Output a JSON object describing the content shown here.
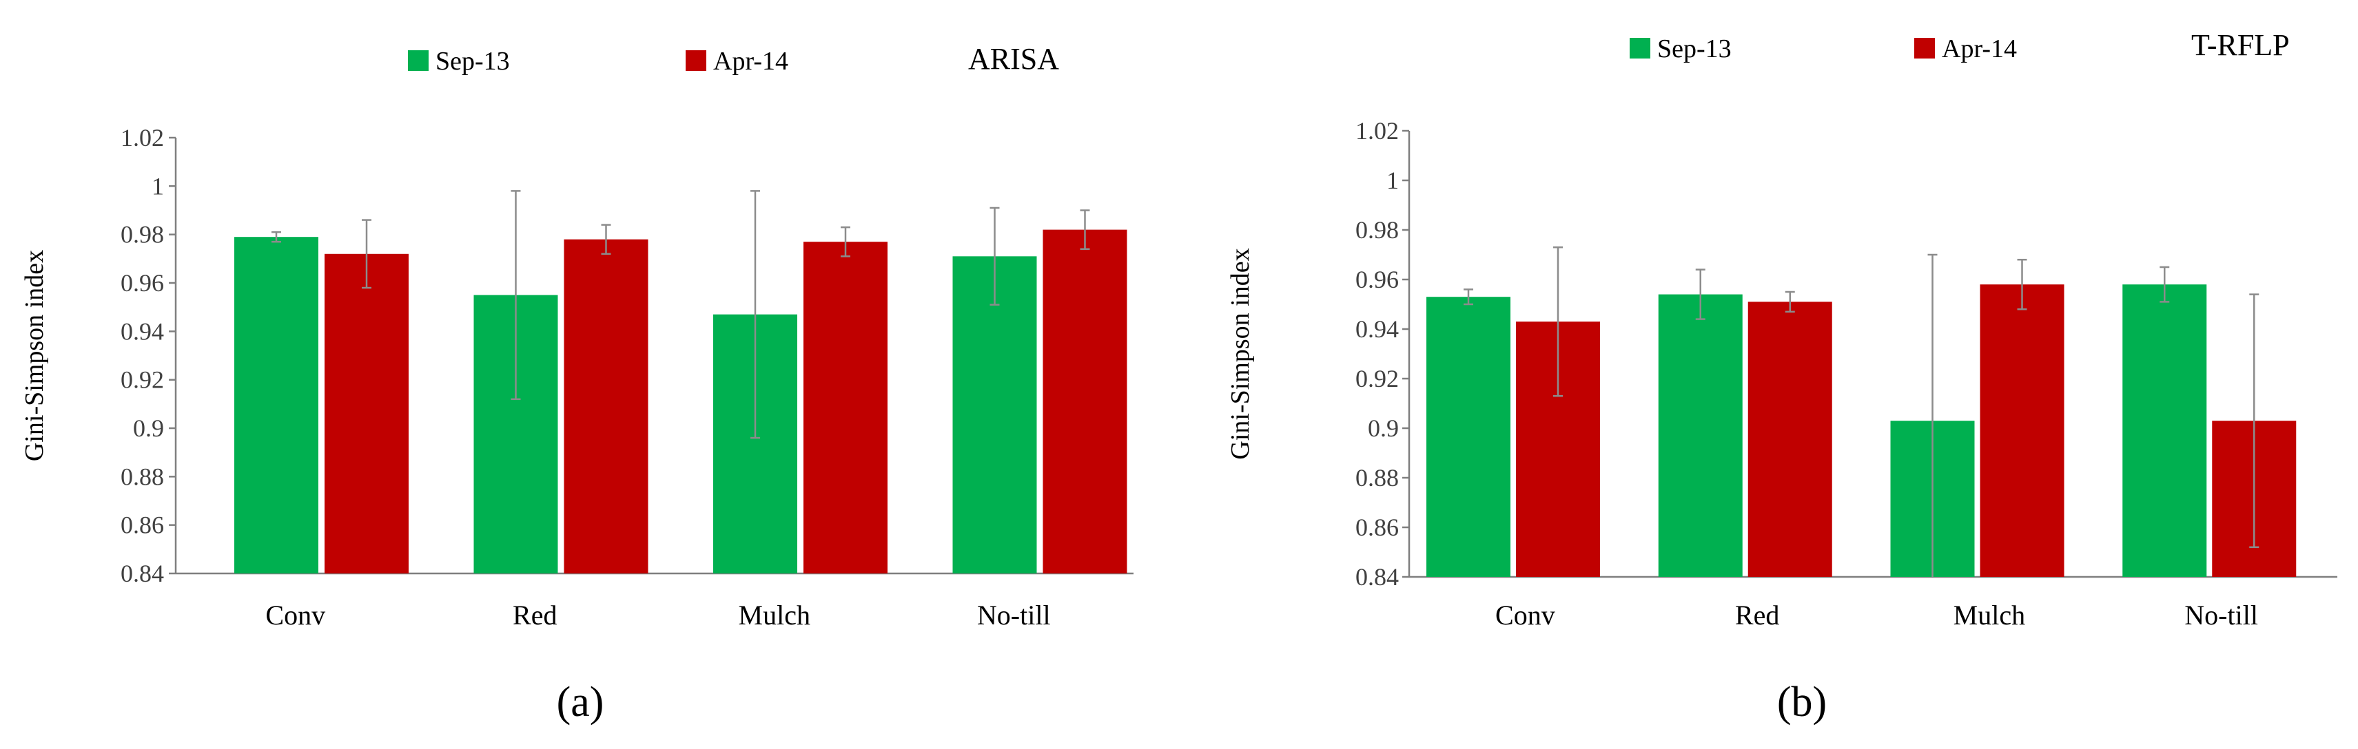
{
  "chart_data": [
    {
      "type": "bar",
      "panel_label": "(a)",
      "method_label": "ARISA",
      "ylabel": "Gini-Simpson index",
      "xlabel": "",
      "ylim": [
        0.84,
        1.02
      ],
      "ytick_step": 0.02,
      "yticks": [
        "0.84",
        "0.86",
        "0.88",
        "0.9",
        "0.92",
        "0.94",
        "0.96",
        "0.98",
        "1",
        "1.02"
      ],
      "categories": [
        "Conv",
        "Red",
        "Mulch",
        "No-till"
      ],
      "series": [
        {
          "name": "Sep-13",
          "color": "#00b050",
          "values": [
            0.979,
            0.955,
            0.947,
            0.971
          ],
          "errors": [
            0.002,
            0.043,
            0.051,
            0.02
          ]
        },
        {
          "name": "Apr-14",
          "color": "#c00000",
          "values": [
            0.972,
            0.978,
            0.977,
            0.982
          ],
          "errors": [
            0.014,
            0.006,
            0.006,
            0.008
          ]
        }
      ],
      "legend": "top"
    },
    {
      "type": "bar",
      "panel_label": "(b)",
      "method_label": "T-RFLP",
      "ylabel": "Gini-Simpson index",
      "xlabel": "",
      "ylim": [
        0.84,
        1.02
      ],
      "ytick_step": 0.02,
      "yticks": [
        "0.84",
        "0.86",
        "0.88",
        "0.9",
        "0.92",
        "0.94",
        "0.96",
        "0.98",
        "1",
        "1.02"
      ],
      "categories": [
        "Conv",
        "Red",
        "Mulch",
        "No-till"
      ],
      "series": [
        {
          "name": "Sep-13",
          "color": "#00b050",
          "values": [
            0.953,
            0.954,
            0.903,
            0.958
          ],
          "errors": [
            0.003,
            0.01,
            0.067,
            0.007
          ]
        },
        {
          "name": "Apr-14",
          "color": "#c00000",
          "values": [
            0.943,
            0.951,
            0.958,
            0.903
          ],
          "errors": [
            0.03,
            0.004,
            0.01,
            0.051
          ]
        }
      ],
      "legend": "top"
    }
  ]
}
